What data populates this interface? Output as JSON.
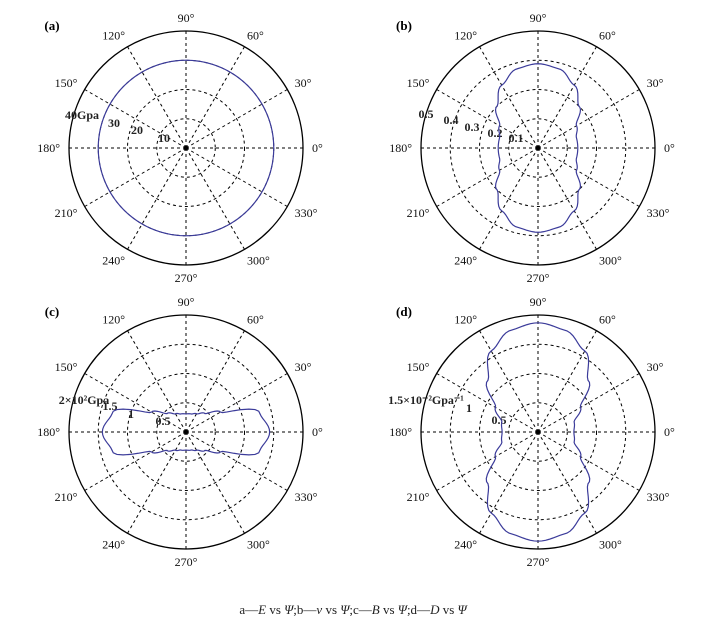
{
  "panels": [
    {
      "chart_data": {
        "type": "polar",
        "panel_label": "(a)",
        "title": "",
        "angle_tick_labels": [
          "0°",
          "30°",
          "60°",
          "90°",
          "120°",
          "150°",
          "180°",
          "210°",
          "240°",
          "270°",
          "300°",
          "330°"
        ],
        "radial_tick_labels": [
          "10",
          "20",
          "30",
          "40Gpa"
        ],
        "rmax": 40,
        "series": [
          {
            "theta_deg": [
              0,
              30,
              60,
              90,
              120,
              150,
              180,
              210,
              240,
              270,
              300,
              330
            ],
            "r": [
              30,
              30,
              30,
              30,
              30,
              30,
              30,
              30,
              30,
              30,
              30,
              30
            ],
            "color": "#3b3b9a"
          }
        ],
        "grid": true
      }
    },
    {
      "chart_data": {
        "type": "polar",
        "panel_label": "(b)",
        "title": "",
        "angle_tick_labels": [
          "0°",
          "30°",
          "60°",
          "90°",
          "120°",
          "150°",
          "180°",
          "210°",
          "240°",
          "270°",
          "300°",
          "330°"
        ],
        "radial_tick_labels": [
          "0.1",
          "0.2",
          "0.3",
          "0.4",
          "0.5"
        ],
        "rmax": 0.5,
        "series": [
          {
            "theta_deg": [
              0,
              15,
              30,
              45,
              60,
              75,
              90
            ],
            "r": [
              0.17,
              0.17,
              0.19,
              0.25,
              0.31,
              0.35,
              0.36
            ],
            "symmetry": "quadrant",
            "color": "#3b3b9a"
          }
        ],
        "grid": true
      }
    },
    {
      "chart_data": {
        "type": "polar",
        "panel_label": "(c)",
        "title": "",
        "angle_tick_labels": [
          "0°",
          "30°",
          "60°",
          "90°",
          "120°",
          "150°",
          "180°",
          "210°",
          "240°",
          "270°",
          "300°",
          "330°"
        ],
        "radial_tick_labels": [
          "0.5",
          "1",
          "1.5",
          "2×10²Gpa"
        ],
        "rmax": 2,
        "series": [
          {
            "theta_deg": [
              0,
              15,
              30,
              45,
              60,
              75,
              90
            ],
            "r": [
              1.43,
              1.3,
              0.68,
              0.45,
              0.36,
              0.32,
              0.31
            ],
            "symmetry": "quadrant",
            "color": "#3b3b9a"
          }
        ],
        "grid": true
      }
    },
    {
      "chart_data": {
        "type": "polar",
        "panel_label": "(d)",
        "title": "",
        "angle_tick_labels": [
          "0°",
          "30°",
          "60°",
          "90°",
          "120°",
          "150°",
          "180°",
          "210°",
          "240°",
          "270°",
          "300°",
          "330°"
        ],
        "radial_tick_labels": [
          "0.5",
          "1",
          "1.5×10⁻²Gpa⁻¹"
        ],
        "rmax": 1.5,
        "series": [
          {
            "theta_deg": [
              0,
              15,
              30,
              45,
              60,
              75,
              90
            ],
            "r": [
              0.46,
              0.48,
              0.63,
              0.92,
              1.2,
              1.35,
              1.4
            ],
            "symmetry": "quadrant",
            "color": "#3b3b9a"
          }
        ],
        "grid": true
      }
    }
  ],
  "caption": {
    "parts": [
      {
        "text": "a—",
        "italic": false
      },
      {
        "text": "E",
        "italic": true
      },
      {
        "text": " vs ",
        "italic": false
      },
      {
        "text": "Ψ",
        "italic": true
      },
      {
        "text": ";b—",
        "italic": false
      },
      {
        "text": "v",
        "italic": true
      },
      {
        "text": " vs ",
        "italic": false
      },
      {
        "text": "Ψ",
        "italic": true
      },
      {
        "text": ";c—",
        "italic": false
      },
      {
        "text": "B",
        "italic": true
      },
      {
        "text": " vs ",
        "italic": false
      },
      {
        "text": "Ψ",
        "italic": true
      },
      {
        "text": ";d—",
        "italic": false
      },
      {
        "text": "D",
        "italic": true
      },
      {
        "text": " vs ",
        "italic": false
      },
      {
        "text": "Ψ",
        "italic": true
      }
    ]
  }
}
